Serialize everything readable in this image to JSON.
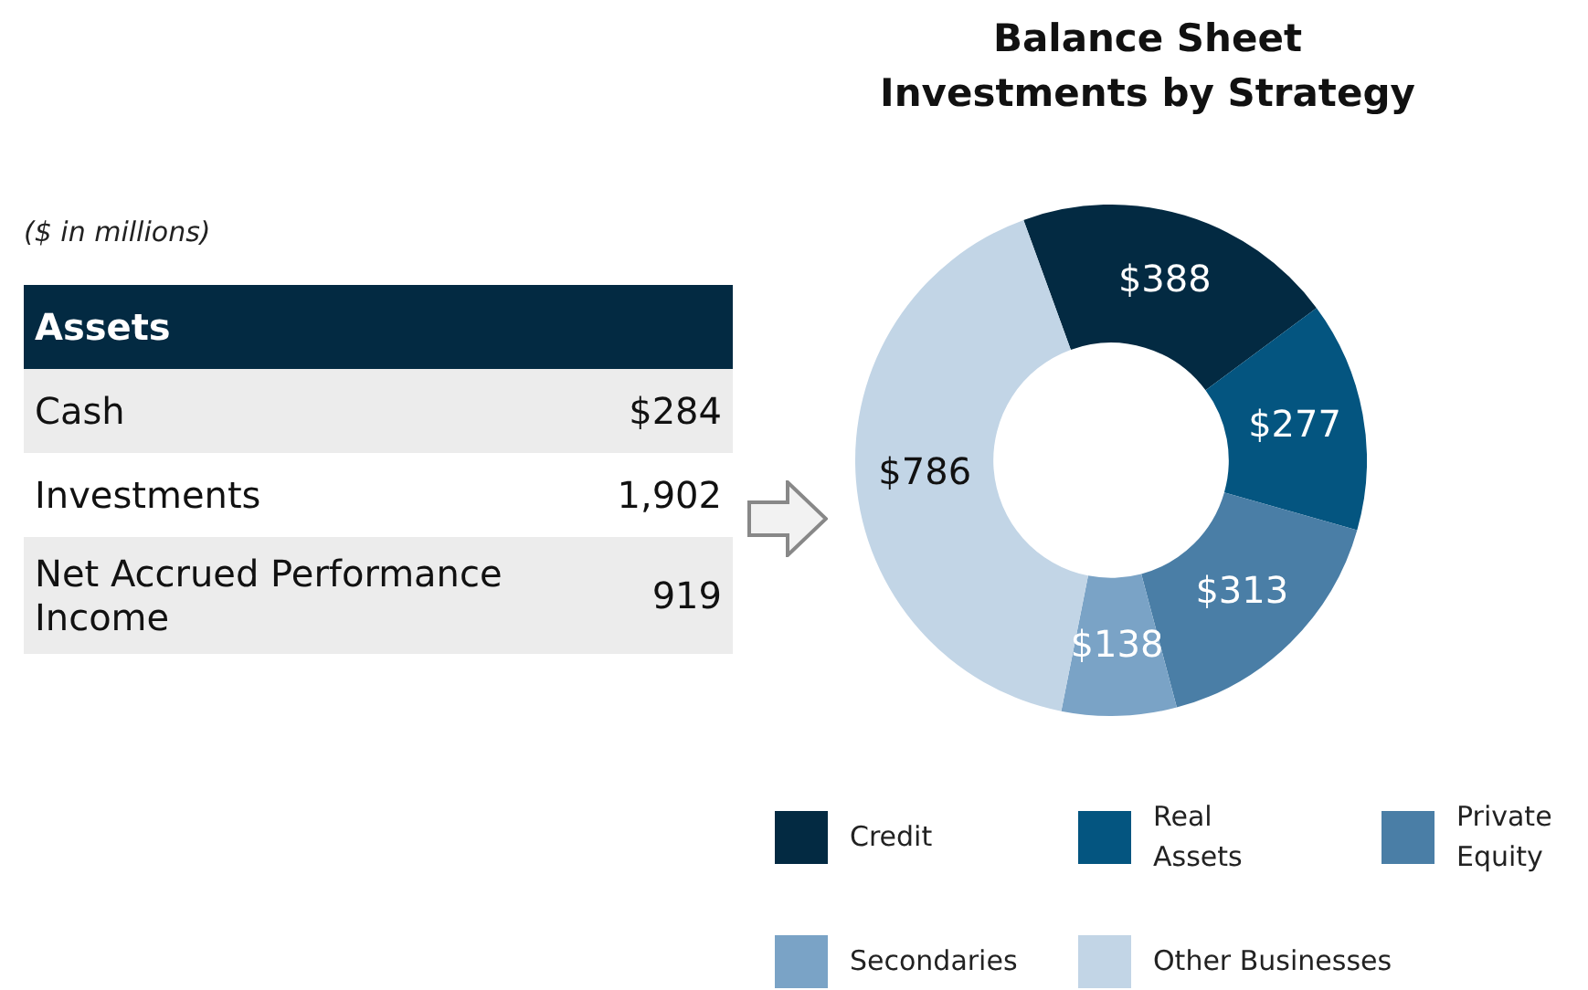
{
  "chart_data": [
    {
      "type": "other",
      "annotations": [
        "($ in millions)",
        "Assets",
        "Cash",
        "$284",
        "Investments",
        "1,902",
        "Net Accrued Performance Income",
        "919"
      ]
    },
    {
      "type": "donut",
      "title": "Balance Sheet\nInvestments by Strategy",
      "categories": [
        "Credit",
        "Real Assets",
        "Private Equity",
        "Secondaries",
        "Other Businesses"
      ],
      "values": [
        388,
        277,
        313,
        138,
        786
      ],
      "colors": [
        "#032a42",
        "#045580",
        "#4a7ea6",
        "#7aa3c6",
        "#c2d5e6"
      ],
      "value_labels": [
        "$388",
        "$277",
        "$313",
        "$138",
        "$786"
      ],
      "legend": "bottom"
    }
  ]
}
